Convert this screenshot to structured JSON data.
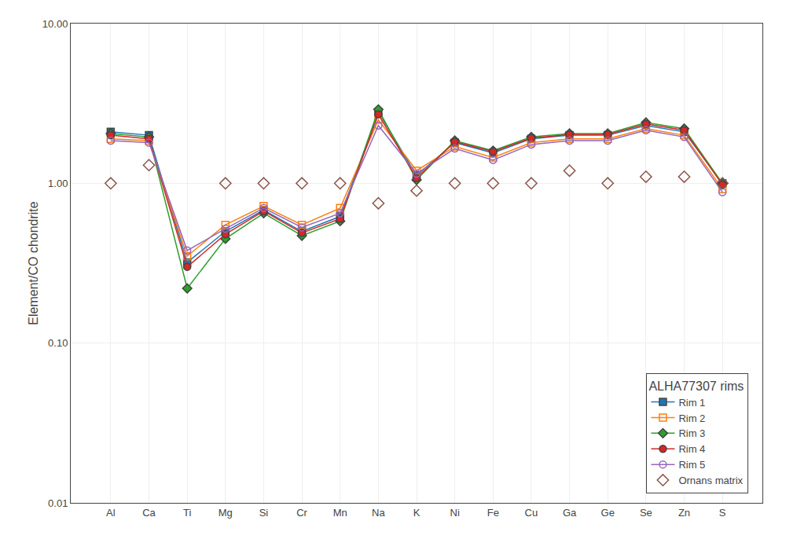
{
  "chart_data": {
    "type": "line",
    "categories": [
      "Al",
      "Ca",
      "Ti",
      "Mg",
      "Si",
      "Cr",
      "Mn",
      "Na",
      "K",
      "Ni",
      "Fe",
      "Cu",
      "Ga",
      "Ge",
      "Se",
      "Zn",
      "S"
    ],
    "series": [
      {
        "name": "Rim 1",
        "type": "line",
        "marker": "square",
        "values": [
          2.1,
          2.0,
          0.32,
          0.5,
          0.68,
          0.5,
          0.62,
          2.8,
          1.12,
          1.8,
          1.55,
          1.9,
          2.0,
          2.0,
          2.3,
          2.1,
          1.0
        ]
      },
      {
        "name": "Rim 2",
        "type": "line",
        "marker": "square-open",
        "values": [
          1.9,
          1.85,
          0.35,
          0.55,
          0.72,
          0.55,
          0.7,
          2.5,
          1.2,
          1.7,
          1.45,
          1.8,
          1.9,
          1.9,
          2.2,
          2.0,
          0.92
        ]
      },
      {
        "name": "Rim 3",
        "type": "line",
        "marker": "diamond",
        "values": [
          2.05,
          1.95,
          0.22,
          0.45,
          0.65,
          0.47,
          0.58,
          2.9,
          1.05,
          1.85,
          1.6,
          1.95,
          2.05,
          2.05,
          2.4,
          2.2,
          1.0
        ]
      },
      {
        "name": "Rim 4",
        "type": "line",
        "marker": "circle",
        "values": [
          2.0,
          1.9,
          0.3,
          0.48,
          0.67,
          0.49,
          0.6,
          2.7,
          1.08,
          1.82,
          1.58,
          1.92,
          2.02,
          2.02,
          2.35,
          2.15,
          0.98
        ]
      },
      {
        "name": "Rim 5",
        "type": "line",
        "marker": "circle-open",
        "values": [
          1.85,
          1.8,
          0.38,
          0.52,
          0.7,
          0.53,
          0.65,
          2.3,
          1.15,
          1.65,
          1.4,
          1.75,
          1.85,
          1.85,
          2.15,
          1.95,
          0.88
        ]
      },
      {
        "name": "Ornans matrix",
        "type": "scatter",
        "marker": "diamond-open",
        "values": [
          1.0,
          1.3,
          null,
          1.0,
          1.0,
          1.0,
          1.0,
          0.75,
          0.9,
          1.0,
          1.0,
          1.0,
          1.2,
          1.0,
          1.1,
          1.1,
          1.0
        ]
      }
    ],
    "ylabel": "Element/CO chondrite",
    "ylim": [
      0.01,
      10.0
    ],
    "yticks": [
      0.01,
      {
        "value": 0.1,
        "label": "0.10"
      },
      {
        "value": 1.0,
        "label": "1.00"
      },
      {
        "value": 10.0,
        "label": "10.00"
      }
    ],
    "log": "y",
    "grid": true,
    "legend": "lower right",
    "legend_title": "ALHA77307 rims"
  }
}
